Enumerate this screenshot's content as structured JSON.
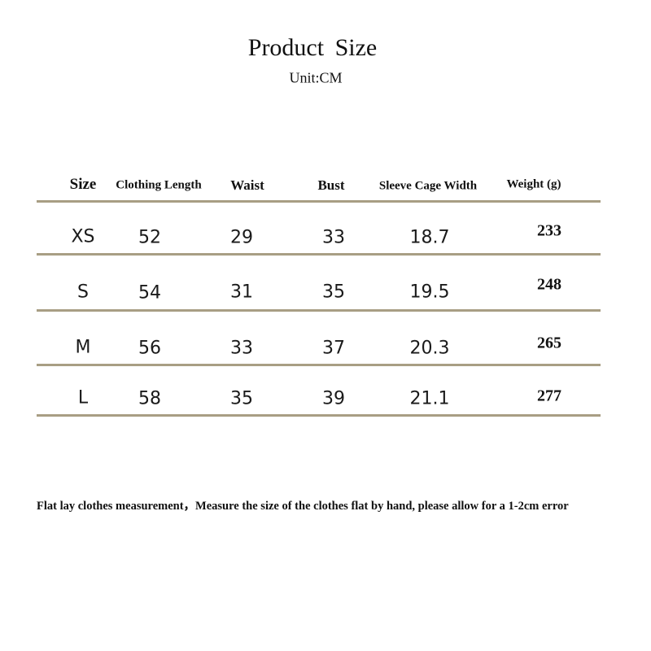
{
  "title": "Product  Size",
  "unit": "Unit:CM",
  "table": {
    "headers": [
      "Size",
      "Clothing Length",
      "Waist",
      "Bust",
      "Sleeve Cage Width",
      "Weight (g)"
    ],
    "rows": [
      [
        "XS",
        "52",
        "29",
        "33",
        "18.7",
        "233"
      ],
      [
        "S",
        "54",
        "31",
        "35",
        "19.5",
        "248"
      ],
      [
        "M",
        "56",
        "33",
        "37",
        "20.3",
        "265"
      ],
      [
        "L",
        "58",
        "35",
        "39",
        "21.1",
        "277"
      ]
    ],
    "rule_color": "#a89e84"
  },
  "note": "Flat lay clothes measurement，Measure the size of the clothes flat by hand, please allow for a 1-2cm error"
}
